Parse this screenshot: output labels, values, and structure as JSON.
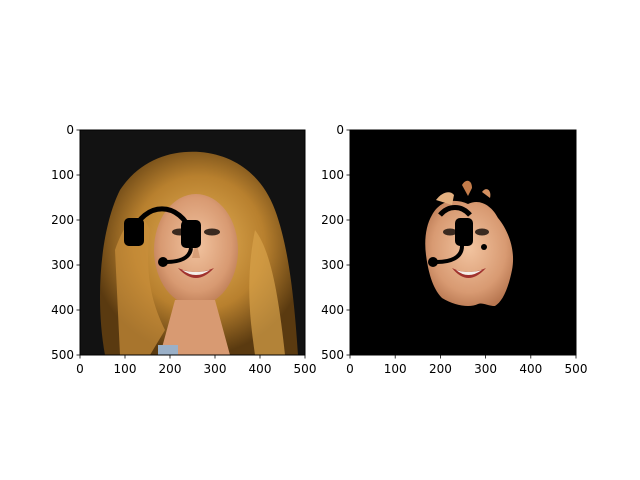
{
  "chart_data": [
    {
      "type": "image",
      "title": "",
      "xlabel": "",
      "ylabel": "",
      "xlim": [
        0,
        500
      ],
      "ylim": [
        500,
        0
      ],
      "x_ticks": [
        "0",
        "100",
        "200",
        "300",
        "400",
        "500"
      ],
      "y_ticks": [
        "0",
        "100",
        "200",
        "300",
        "400",
        "500"
      ],
      "background": "#111111",
      "content": "portrait-with-headset-overlay",
      "overlay": {
        "arc_center": [
          180,
          255
        ],
        "arc_radius": 60,
        "left_earcup": [
          118,
          228
        ],
        "right_earcup": [
          248,
          228
        ],
        "mic_end": [
          180,
          295
        ]
      }
    },
    {
      "type": "image",
      "title": "",
      "xlabel": "",
      "ylabel": "",
      "xlim": [
        0,
        500
      ],
      "ylim": [
        500,
        0
      ],
      "x_ticks": [
        "0",
        "100",
        "200",
        "300",
        "400",
        "500"
      ],
      "y_ticks": [
        "0",
        "100",
        "200",
        "300",
        "400",
        "500"
      ],
      "background": "#000000",
      "content": "masked-face-with-headset-overlay",
      "overlay": {
        "arc_center": [
          225,
          245
        ],
        "arc_radius": 35,
        "right_earcup": [
          250,
          228
        ],
        "mic_end": [
          185,
          292
        ]
      }
    }
  ]
}
